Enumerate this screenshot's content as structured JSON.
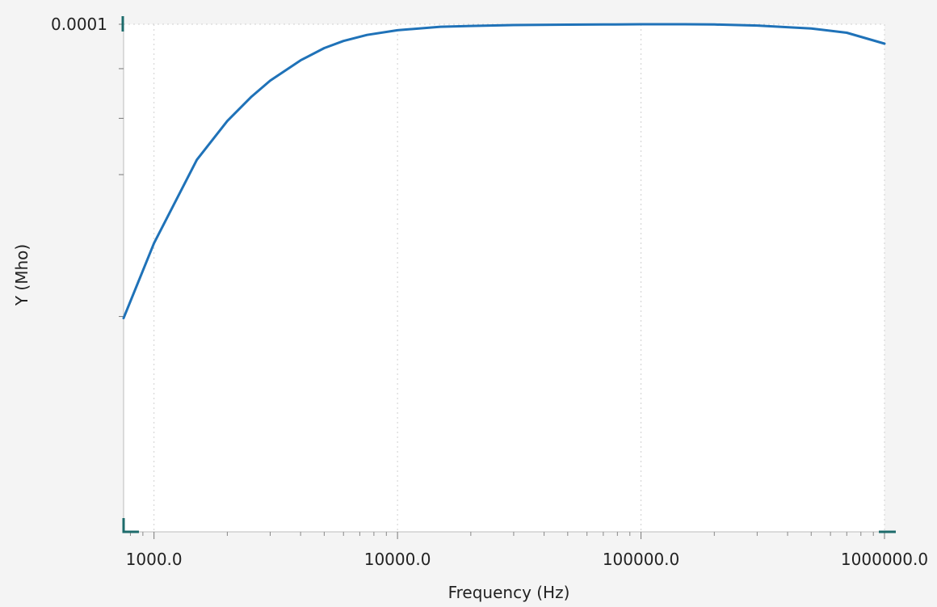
{
  "chart_data": {
    "type": "line",
    "xlabel": "Frequency (Hz)",
    "ylabel": "Y (Mho)",
    "x_scale": "log",
    "y_scale": "log",
    "xlim": [
      750,
      1000000
    ],
    "ylim": [
      3e-05,
      0.0001
    ],
    "x_ticks": [
      {
        "value": 1000,
        "label": "1000.0"
      },
      {
        "value": 10000,
        "label": "10000.0"
      },
      {
        "value": 100000,
        "label": "100000.0"
      },
      {
        "value": 1000000,
        "label": "1000000.0"
      }
    ],
    "y_ticks": [
      {
        "value": 0.0001,
        "label": "0.0001"
      },
      {
        "value": 9e-05,
        "label": ""
      },
      {
        "value": 8e-05,
        "label": ""
      },
      {
        "value": 7e-05,
        "label": ""
      },
      {
        "value": 5e-05,
        "label": ""
      }
    ],
    "grid": true,
    "colors": {
      "line": "#1f72b8",
      "axis_marker": "#1d6b6b",
      "grid": "#d0d0d0",
      "plot_bg": "#ffffff",
      "page_bg": "#f4f4f4"
    },
    "series": [
      {
        "x": [
          750,
          1000,
          1500,
          2000,
          2500,
          3000,
          4000,
          5000,
          6000,
          7500,
          10000,
          15000,
          20000,
          30000,
          50000,
          70000,
          100000,
          150000,
          200000,
          300000,
          500000,
          700000,
          1000000
        ],
        "y": [
          4.98e-05,
          5.95e-05,
          7.25e-05,
          7.95e-05,
          8.41e-05,
          8.75e-05,
          9.18e-05,
          9.45e-05,
          9.61e-05,
          9.75e-05,
          9.86e-05,
          9.94e-05,
          9.96e-05,
          9.98e-05,
          9.99e-05,
          9.995e-05,
          0.0001,
          0.0001,
          9.995e-05,
          9.97e-05,
          9.9e-05,
          9.8e-05,
          9.55e-05
        ]
      }
    ]
  }
}
